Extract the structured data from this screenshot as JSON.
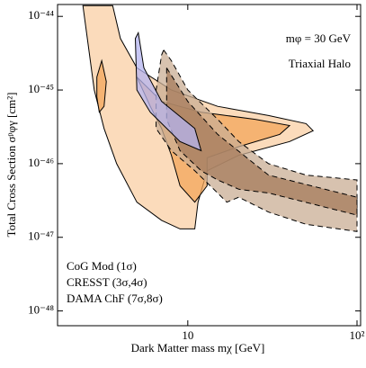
{
  "chart_data": {
    "type": "contour",
    "annotations": [
      "mφ = 30 GeV",
      "Triaxial Halo"
    ],
    "xlabel": "Dark Matter mass   mχ  [GeV]",
    "ylabel": "Total Cross Section  σᵖφγ [cm²]",
    "xscale": "log",
    "yscale": "log",
    "xlim": [
      1.7,
      105
    ],
    "ylim": [
      1.45e-44,
      6.3e-49
    ],
    "xticks": [
      10,
      {
        "value": 100,
        "label": "10²"
      }
    ],
    "yticks": [
      {
        "value": 1e-44,
        "label": "10⁻⁴⁴"
      },
      {
        "value": 1e-45,
        "label": "10⁻⁴⁵"
      },
      {
        "value": 1e-46,
        "label": "10⁻⁴⁶"
      },
      {
        "value": 1e-47,
        "label": "10⁻⁴⁷"
      },
      {
        "value": 1e-48,
        "label": "10⁻⁴⁸"
      }
    ],
    "series": [
      {
        "name": "DAMA ChF (7σ,8σ)",
        "color": "#e8891f",
        "contours": [
          {
            "fill": "#f9cfa4",
            "dashed": false,
            "x": [
              2.4,
              2.8,
              3.2,
              3.8,
              5,
              7,
              9,
              11,
              11.5,
              13,
              20,
              40,
              55,
              50,
              30,
              15,
              8,
              5,
              4,
              3.6
            ],
            "y": [
              1.4e-44,
              1e-45,
              3e-46,
              1e-46,
              3e-47,
              1.7e-47,
              1.3e-47,
              1.3e-47,
              3e-47,
              8e-47,
              1.3e-46,
              2e-46,
              2.8e-46,
              3.5e-46,
              4.5e-46,
              6e-46,
              1e-45,
              2e-45,
              5e-45,
              1.4e-44
            ]
          },
          {
            "fill": "#f3a65a",
            "dashed": false,
            "x": [
              5,
              6,
              7,
              8,
              9,
              11,
              13,
              13,
              20,
              35,
              40,
              25,
              12,
              7
            ],
            "y": [
              1.5e-45,
              6e-46,
              3e-46,
              1.3e-46,
              5e-47,
              3e-47,
              5e-47,
              1.2e-46,
              1.7e-46,
              2.5e-46,
              3.3e-46,
              4e-46,
              5e-46,
              7e-46
            ]
          },
          {
            "fill": "#f3a65a",
            "dashed": false,
            "x": [
              2.9,
              3.1,
              3.3,
              3.2,
              3,
              2.9
            ],
            "y": [
              1.5e-45,
              2.5e-45,
              1.3e-45,
              6e-46,
              5e-46,
              8e-46
            ]
          }
        ]
      },
      {
        "name": "CRESST (3σ,4σ)",
        "color": "#8a5a3a",
        "contours": [
          {
            "fill": "#c9ae94",
            "dashed": true,
            "x": [
              7.2,
              8,
              10,
              15,
              20,
              30,
              50,
              100,
              100,
              50,
              30,
              20,
              17,
              15,
              11,
              8,
              6.5,
              6.5,
              7
            ],
            "y": [
              3.5e-45,
              2.5e-45,
              1e-45,
              4e-46,
              2e-46,
              1e-46,
              7e-47,
              6e-47,
              1.2e-47,
              1.5e-47,
              2.2e-47,
              3.5e-47,
              3e-47,
              4e-47,
              8e-47,
              1.5e-46,
              3e-46,
              1e-45,
              3e-45
            ]
          },
          {
            "fill": "#a57b5b",
            "dashed": true,
            "x": [
              7.5,
              10,
              15,
              30,
              100,
              100,
              30,
              20,
              15,
              12,
              9,
              7.5
            ],
            "y": [
              2e-45,
              7e-46,
              2.5e-46,
              7e-47,
              3.5e-47,
              2e-47,
              4e-47,
              4.5e-47,
              6e-47,
              8e-47,
              1.5e-46,
              4e-46
            ]
          }
        ]
      },
      {
        "name": "CoG Mod (1σ)",
        "color": "#2a2ac8",
        "contours": [
          {
            "fill": "#b4b4f0",
            "dashed": false,
            "x": [
              4.9,
              5,
              6,
              9,
              12,
              11,
              7,
              5.5,
              5.1
            ],
            "y": [
              5e-45,
              1e-45,
              5e-46,
              2e-46,
              1.5e-46,
              3e-46,
              7e-46,
              2e-45,
              6e-45
            ]
          }
        ]
      }
    ]
  }
}
